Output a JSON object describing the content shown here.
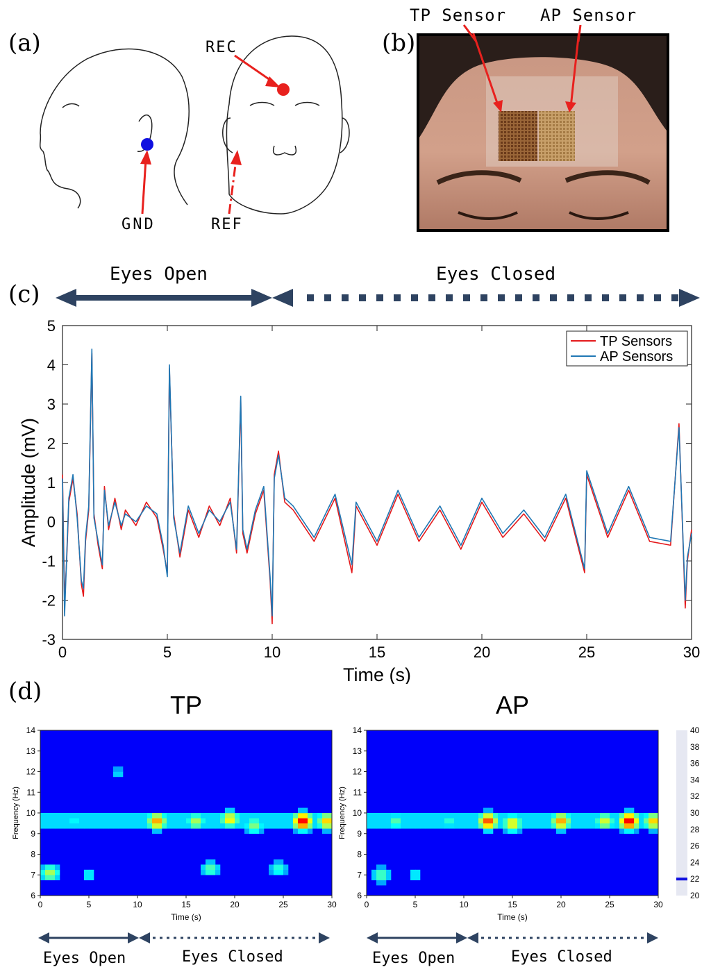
{
  "panel_a": {
    "label": "(a)",
    "rec": "REC",
    "gnd": "GND",
    "ref": "REF"
  },
  "panel_b": {
    "label": "(b)",
    "tp_sensor": "TP Sensor",
    "ap_sensor": "AP Sensor"
  },
  "panel_c": {
    "label": "(c)",
    "eyes_open": "Eyes Open",
    "eyes_closed": "Eyes Closed"
  },
  "panel_d": {
    "label": "(d)",
    "eyes_open": "Eyes Open",
    "eyes_closed": "Eyes Closed"
  },
  "colors": {
    "tp": "#e41a1c",
    "ap": "#1f77b4",
    "arrow": "#2e4361",
    "pointer": "#e8211e",
    "rec_dot": "#e8211e",
    "gnd_dot": "#1010e0"
  },
  "chart_data": [
    {
      "type": "line",
      "xlabel": "Time (s)",
      "ylabel": "Amplitude (mV)",
      "xlim": [
        0,
        30
      ],
      "ylim": [
        -3,
        5
      ],
      "xticks": [
        0,
        5,
        10,
        15,
        20,
        25,
        30
      ],
      "yticks": [
        -3,
        -2,
        -1,
        0,
        1,
        2,
        3,
        4,
        5
      ],
      "legend_position": "top-right",
      "series": [
        {
          "name": "TP Sensors",
          "x": [
            0,
            0.1,
            0.2,
            0.3,
            0.5,
            0.7,
            0.9,
            1.0,
            1.1,
            1.25,
            1.4,
            1.5,
            1.7,
            1.9,
            2.0,
            2.2,
            2.5,
            2.8,
            3.0,
            3.5,
            4.0,
            4.5,
            4.8,
            5.0,
            5.1,
            5.3,
            5.6,
            6.0,
            6.5,
            7.0,
            7.5,
            8.0,
            8.3,
            8.5,
            8.6,
            8.8,
            9.2,
            9.6,
            9.9,
            10.0,
            10.1,
            10.3,
            10.6,
            11.0,
            12.0,
            13.0,
            13.8,
            14.0,
            15.0,
            16.0,
            17.0,
            18.0,
            19.0,
            20.0,
            21.0,
            22.0,
            23.0,
            24.0,
            24.9,
            25.0,
            26.0,
            27.0,
            28.0,
            29.0,
            29.4,
            29.7,
            29.8,
            30.0
          ],
          "y": [
            1.2,
            -2.0,
            -1.0,
            0.5,
            1.1,
            0.2,
            -1.6,
            -1.9,
            -0.5,
            0.3,
            4.3,
            0.2,
            -0.6,
            -1.2,
            0.9,
            -0.2,
            0.6,
            -0.2,
            0.3,
            -0.1,
            0.5,
            0.1,
            -0.7,
            -1.3,
            3.9,
            0.2,
            -0.9,
            0.3,
            -0.4,
            0.4,
            -0.1,
            0.6,
            -0.8,
            3.1,
            -0.3,
            -0.8,
            0.2,
            0.8,
            -1.5,
            -2.6,
            1.2,
            1.8,
            0.5,
            0.3,
            -0.5,
            0.6,
            -1.3,
            0.4,
            -0.6,
            0.7,
            -0.5,
            0.3,
            -0.7,
            0.5,
            -0.4,
            0.2,
            -0.5,
            0.6,
            -1.3,
            1.2,
            -0.4,
            0.8,
            -0.5,
            -0.6,
            2.5,
            -2.2,
            -1.0,
            -0.2
          ]
        },
        {
          "name": "AP Sensors",
          "x": [
            0,
            0.1,
            0.2,
            0.3,
            0.5,
            0.7,
            0.9,
            1.0,
            1.1,
            1.25,
            1.4,
            1.5,
            1.7,
            1.9,
            2.0,
            2.2,
            2.5,
            2.8,
            3.0,
            3.5,
            4.0,
            4.5,
            4.8,
            5.0,
            5.1,
            5.3,
            5.6,
            6.0,
            6.5,
            7.0,
            7.5,
            8.0,
            8.3,
            8.5,
            8.6,
            8.8,
            9.2,
            9.6,
            9.9,
            10.0,
            10.1,
            10.3,
            10.6,
            11.0,
            12.0,
            13.0,
            13.8,
            14.0,
            15.0,
            16.0,
            17.0,
            18.0,
            19.0,
            20.0,
            21.0,
            22.0,
            23.0,
            24.0,
            24.9,
            25.0,
            26.0,
            27.0,
            28.0,
            29.0,
            29.4,
            29.7,
            29.8,
            30.0
          ],
          "y": [
            1.1,
            -2.4,
            -0.9,
            0.6,
            1.2,
            0.1,
            -1.5,
            -1.7,
            -0.4,
            0.4,
            4.4,
            0.1,
            -0.5,
            -1.1,
            0.8,
            -0.1,
            0.5,
            -0.1,
            0.2,
            0.0,
            0.4,
            0.2,
            -0.6,
            -1.4,
            4.0,
            0.1,
            -0.8,
            0.4,
            -0.3,
            0.3,
            0.0,
            0.5,
            -0.7,
            3.2,
            -0.2,
            -0.7,
            0.3,
            0.9,
            -1.4,
            -2.4,
            1.1,
            1.7,
            0.6,
            0.4,
            -0.4,
            0.7,
            -1.1,
            0.5,
            -0.5,
            0.8,
            -0.4,
            0.4,
            -0.6,
            0.6,
            -0.3,
            0.3,
            -0.4,
            0.7,
            -1.2,
            1.3,
            -0.3,
            0.9,
            -0.4,
            -0.5,
            2.4,
            -2.0,
            -0.9,
            -0.3
          ]
        }
      ]
    },
    {
      "type": "heatmap",
      "title": "TP",
      "xlabel": "Time (s)",
      "ylabel": "Frequency (Hz)",
      "xlim": [
        0,
        30
      ],
      "ylim": [
        6,
        14
      ],
      "xticks": [
        0,
        5,
        10,
        15,
        20,
        25,
        30
      ],
      "yticks": [
        6,
        7,
        8,
        9,
        10,
        11,
        12,
        13,
        14
      ],
      "hotspots": [
        {
          "t": 1.0,
          "f": 7.1,
          "v": 30
        },
        {
          "t": 5.0,
          "f": 7.0,
          "v": 26
        },
        {
          "t": 3.5,
          "f": 9.6,
          "v": 26
        },
        {
          "t": 8.0,
          "f": 11.9,
          "v": 25
        },
        {
          "t": 12.0,
          "f": 9.6,
          "v": 34
        },
        {
          "t": 16.0,
          "f": 9.6,
          "v": 30
        },
        {
          "t": 17.5,
          "f": 7.3,
          "v": 28
        },
        {
          "t": 19.5,
          "f": 9.7,
          "v": 32
        },
        {
          "t": 22.0,
          "f": 9.4,
          "v": 29
        },
        {
          "t": 24.5,
          "f": 7.3,
          "v": 27
        },
        {
          "t": 27.0,
          "f": 9.6,
          "v": 38
        },
        {
          "t": 29.5,
          "f": 9.6,
          "v": 33
        }
      ]
    },
    {
      "type": "heatmap",
      "title": "AP",
      "xlabel": "Time (s)",
      "ylabel": "Frequency (Hz)",
      "xlim": [
        0,
        30
      ],
      "ylim": [
        6,
        14
      ],
      "xticks": [
        0,
        5,
        10,
        15,
        20,
        25,
        30
      ],
      "yticks": [
        6,
        7,
        8,
        9,
        10,
        11,
        12,
        13,
        14
      ],
      "hotspots": [
        {
          "t": 1.5,
          "f": 7.0,
          "v": 28
        },
        {
          "t": 5.0,
          "f": 7.0,
          "v": 26
        },
        {
          "t": 3.0,
          "f": 9.6,
          "v": 28
        },
        {
          "t": 8.5,
          "f": 9.6,
          "v": 27
        },
        {
          "t": 12.5,
          "f": 9.6,
          "v": 36
        },
        {
          "t": 15.0,
          "f": 9.5,
          "v": 32
        },
        {
          "t": 20.0,
          "f": 9.6,
          "v": 34
        },
        {
          "t": 24.5,
          "f": 9.6,
          "v": 31
        },
        {
          "t": 27.0,
          "f": 9.6,
          "v": 38
        },
        {
          "t": 29.5,
          "f": 9.6,
          "v": 33
        }
      ]
    },
    {
      "type": "colorbar",
      "range": [
        20,
        40
      ],
      "ticks": [
        20,
        22,
        24,
        26,
        28,
        30,
        32,
        34,
        36,
        38,
        40
      ]
    }
  ]
}
